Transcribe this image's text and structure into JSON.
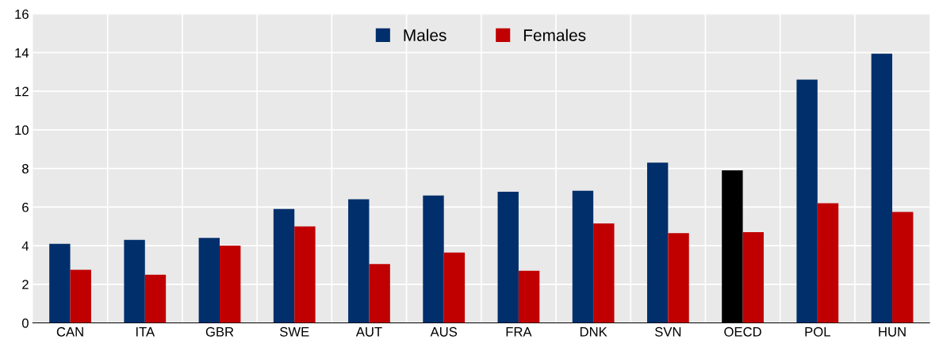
{
  "chart_data": {
    "type": "bar",
    "categories": [
      "CAN",
      "ITA",
      "GBR",
      "SWE",
      "AUT",
      "AUS",
      "FRA",
      "DNK",
      "SVN",
      "OECD",
      "POL",
      "HUN"
    ],
    "series": [
      {
        "name": "Males",
        "color": "#002f6c",
        "colors": [
          "#002f6c",
          "#002f6c",
          "#002f6c",
          "#002f6c",
          "#002f6c",
          "#002f6c",
          "#002f6c",
          "#002f6c",
          "#002f6c",
          "#000000",
          "#002f6c",
          "#002f6c"
        ],
        "values": [
          4.1,
          4.3,
          4.4,
          5.9,
          6.4,
          6.6,
          6.8,
          6.85,
          8.3,
          7.9,
          12.6,
          13.95
        ]
      },
      {
        "name": "Females",
        "color": "#c00000",
        "values": [
          2.75,
          2.5,
          4.0,
          5.0,
          3.05,
          3.65,
          2.7,
          5.15,
          4.65,
          4.7,
          6.2,
          5.75
        ]
      }
    ],
    "ylim": [
      0,
      16
    ],
    "yticks": [
      0,
      2,
      4,
      6,
      8,
      10,
      12,
      14,
      16
    ],
    "grid": true,
    "legend": "top"
  }
}
